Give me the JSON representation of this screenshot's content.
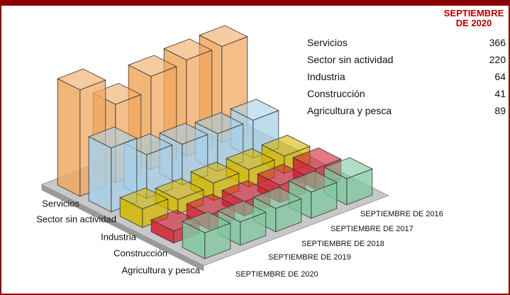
{
  "chart_data": {
    "type": "bar3d",
    "categories": [
      "Servicios",
      "Sector sin actividad",
      "Industria",
      "Construcción",
      "Agricultura y pesca"
    ],
    "colors": [
      "#f0a860",
      "#a8d0e8",
      "#d4b800",
      "#d42030",
      "#80c8a0"
    ],
    "series": [
      {
        "name": "SEPTIEMBRE DE 2016",
        "values": [
          330,
          130,
          60,
          70,
          90
        ]
      },
      {
        "name": "SEPTIEMBRE DE 2017",
        "values": [
          330,
          130,
          60,
          60,
          90
        ]
      },
      {
        "name": "SEPTIEMBRE DE 2018",
        "values": [
          320,
          140,
          60,
          50,
          80
        ]
      },
      {
        "name": "SEPTIEMBRE DE 2019",
        "values": [
          270,
          150,
          50,
          50,
          80
        ]
      },
      {
        "name": "SEPTIEMBRE DE 2020",
        "values": [
          366,
          220,
          64,
          41,
          89
        ]
      }
    ]
  }
}
